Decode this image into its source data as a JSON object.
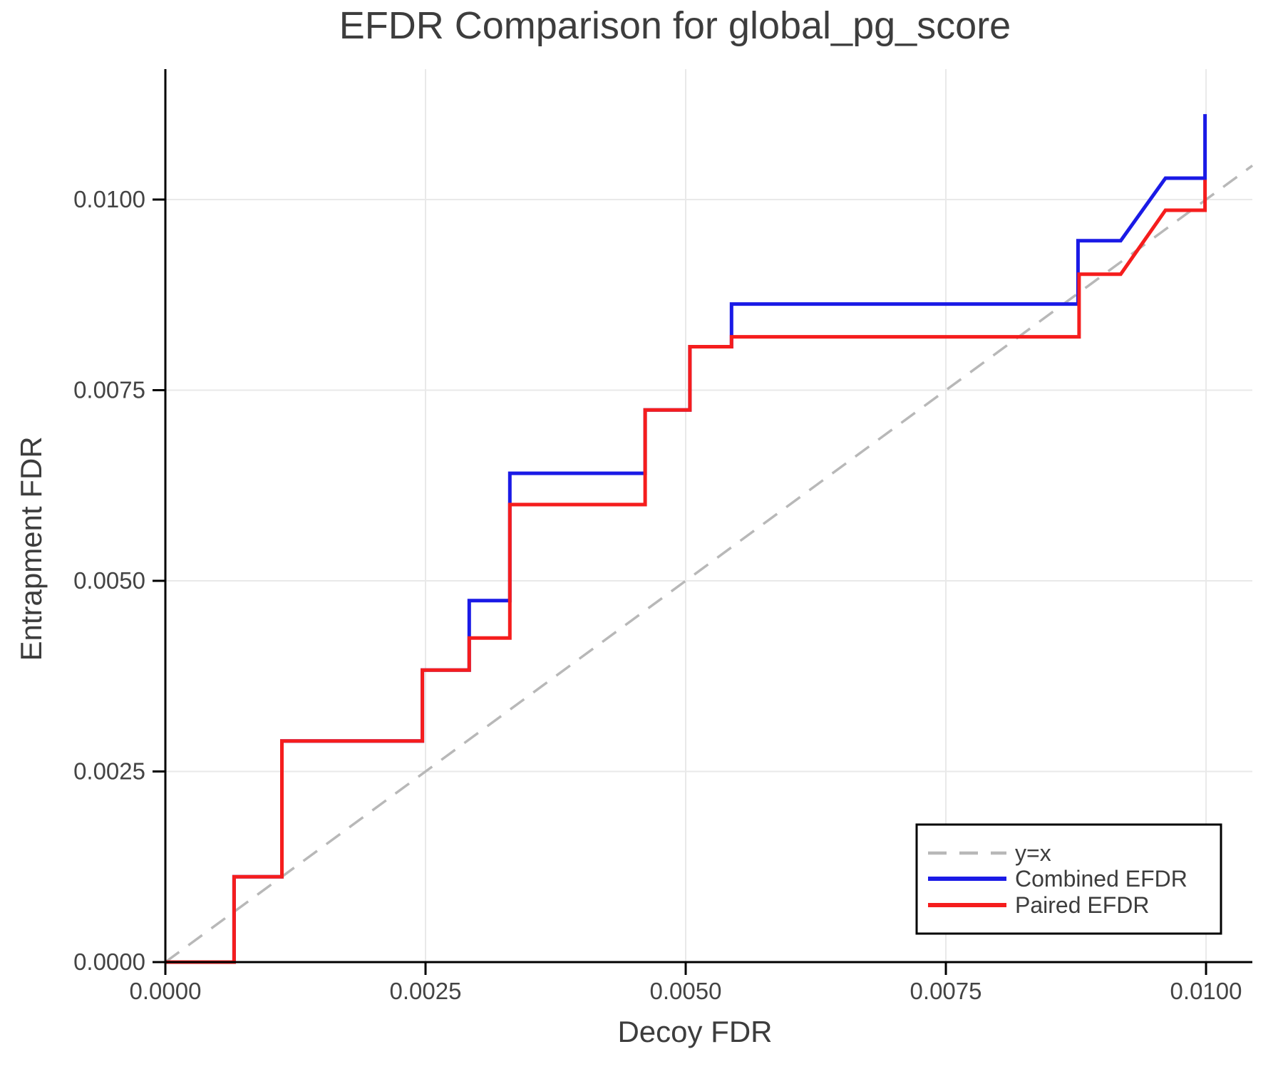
{
  "title": "EFDR Comparison for global_pg_score",
  "colors": {
    "combined_efdr": "#1a1ae6",
    "paired_efdr": "#f51d1d",
    "identity_line": "#b8b8b8",
    "gridline": "#e9e9e9",
    "spine": "#000000",
    "text": "#3d3d3d"
  },
  "chart_data": {
    "type": "line",
    "title": "EFDR Comparison for global_pg_score",
    "xlabel": "Decoy FDR",
    "ylabel": "Entrapment FDR",
    "xlim": [
      0.0,
      0.010445
    ],
    "ylim": [
      0.0,
      0.01171
    ],
    "grid": true,
    "legend_position": "lower right",
    "x_ticks": {
      "values": [
        0.0,
        0.0025,
        0.005,
        0.0075,
        0.01
      ],
      "labels": [
        "0.0000",
        "0.0025",
        "0.0050",
        "0.0075",
        "0.0100"
      ]
    },
    "y_ticks": {
      "values": [
        0.0,
        0.0025,
        0.005,
        0.0075,
        0.01
      ],
      "labels": [
        "0.0000",
        "0.0025",
        "0.0050",
        "0.0075",
        "0.0100"
      ]
    },
    "series": [
      {
        "name": "y=x",
        "style": "dashed",
        "color": "#b8b8b8",
        "width": 3.5,
        "points": [
          [
            0.0,
            0.0
          ],
          [
            0.010445,
            0.010445
          ]
        ]
      },
      {
        "name": "Combined EFDR",
        "style": "solid",
        "color": "#1a1ae6",
        "width": 5,
        "points": [
          [
            0.0,
            0.0
          ],
          [
            0.00066,
            0.0
          ],
          [
            0.00066,
            0.00112
          ],
          [
            0.00112,
            0.00112
          ],
          [
            0.00112,
            0.0029
          ],
          [
            0.00247,
            0.0029
          ],
          [
            0.00247,
            0.00383
          ],
          [
            0.00292,
            0.00383
          ],
          [
            0.00292,
            0.00474
          ],
          [
            0.00331,
            0.00474
          ],
          [
            0.00331,
            0.00641
          ],
          [
            0.00461,
            0.00641
          ],
          [
            0.00461,
            0.00724
          ],
          [
            0.00504,
            0.00724
          ],
          [
            0.00504,
            0.00807
          ],
          [
            0.00544,
            0.00807
          ],
          [
            0.00544,
            0.00863
          ],
          [
            0.00877,
            0.00863
          ],
          [
            0.00877,
            0.00946
          ],
          [
            0.00918,
            0.00946
          ],
          [
            0.00961,
            0.01028
          ],
          [
            0.00999,
            0.01028
          ],
          [
            0.00999,
            0.01112
          ]
        ]
      },
      {
        "name": "Paired EFDR",
        "style": "solid",
        "color": "#f51d1d",
        "width": 5,
        "points": [
          [
            0.0,
            0.0
          ],
          [
            0.00066,
            0.0
          ],
          [
            0.00066,
            0.00112
          ],
          [
            0.00112,
            0.00112
          ],
          [
            0.00112,
            0.0029
          ],
          [
            0.00247,
            0.0029
          ],
          [
            0.00247,
            0.00383
          ],
          [
            0.00292,
            0.00383
          ],
          [
            0.00292,
            0.00425
          ],
          [
            0.00331,
            0.00425
          ],
          [
            0.00331,
            0.006
          ],
          [
            0.00461,
            0.006
          ],
          [
            0.00461,
            0.00724
          ],
          [
            0.00504,
            0.00724
          ],
          [
            0.00504,
            0.00807
          ],
          [
            0.00544,
            0.00807
          ],
          [
            0.00544,
            0.0082
          ],
          [
            0.00878,
            0.0082
          ],
          [
            0.00878,
            0.00902
          ],
          [
            0.00918,
            0.00902
          ],
          [
            0.00961,
            0.00986
          ],
          [
            0.00999,
            0.00986
          ],
          [
            0.00999,
            0.01026
          ]
        ]
      }
    ]
  },
  "legend": {
    "items": [
      {
        "label": "y=x"
      },
      {
        "label": "Combined EFDR"
      },
      {
        "label": "Paired EFDR"
      }
    ]
  }
}
